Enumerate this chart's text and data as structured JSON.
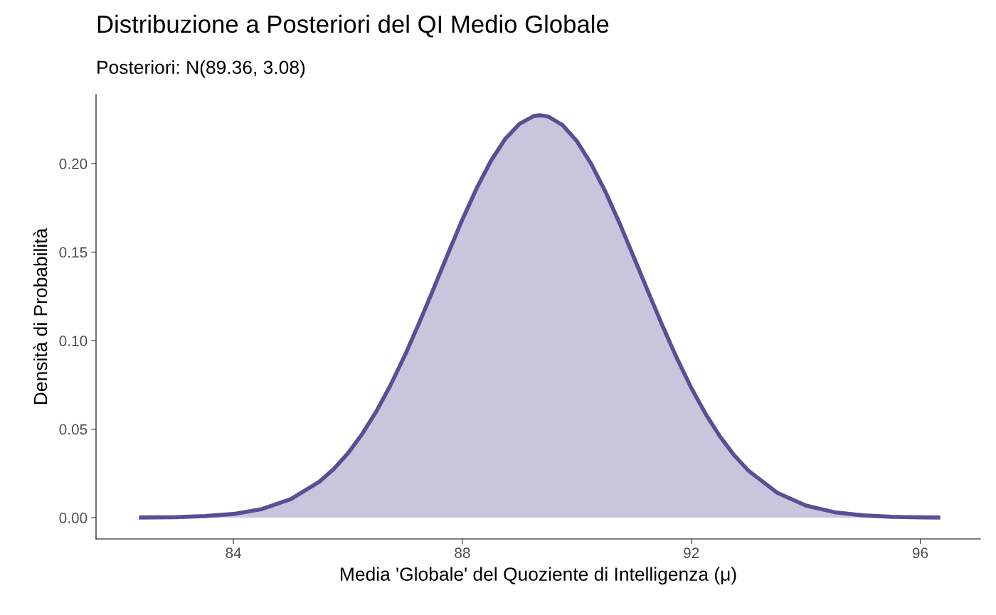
{
  "chart_data": {
    "type": "area",
    "title": "Distribuzione a Posteriori del QI Medio Globale",
    "subtitle": "Posteriori: N(89.36, 3.08)",
    "xlabel": "Media 'Globale' del Quoziente di Intelligenza (μ)",
    "ylabel": "Densità di Probabilità",
    "x": [
      82.35,
      83.0,
      83.5,
      84.0,
      84.5,
      85.0,
      85.5,
      85.75,
      86.0,
      86.25,
      86.5,
      86.75,
      87.0,
      87.25,
      87.5,
      87.75,
      88.0,
      88.25,
      88.5,
      88.75,
      89.0,
      89.25,
      89.36,
      89.5,
      89.75,
      90.0,
      90.25,
      90.5,
      90.75,
      91.0,
      91.25,
      91.5,
      91.75,
      92.0,
      92.25,
      92.5,
      92.75,
      93.0,
      93.5,
      94.0,
      94.5,
      95.0,
      95.5,
      96.0,
      96.35
    ],
    "series": [
      {
        "color": "#5a4e95",
        "values": [
          0.0001,
          0.0003,
          0.0009,
          0.0021,
          0.0049,
          0.0104,
          0.0203,
          0.0274,
          0.0363,
          0.0473,
          0.0602,
          0.0752,
          0.092,
          0.1103,
          0.1296,
          0.1492,
          0.1684,
          0.1861,
          0.2016,
          0.214,
          0.2225,
          0.2269,
          0.2273,
          0.2266,
          0.2218,
          0.2127,
          0.1999,
          0.1841,
          0.1661,
          0.1468,
          0.1273,
          0.1081,
          0.09,
          0.0733,
          0.0586,
          0.0459,
          0.0352,
          0.0265,
          0.0141,
          0.0069,
          0.0031,
          0.0013,
          0.0005,
          0.0002,
          0.0001
        ]
      }
    ],
    "xlim": [
      81.6,
      97.05
    ],
    "ylim": [
      -0.012,
      0.239
    ],
    "xticks": [
      84,
      88,
      92,
      96
    ],
    "yticks": [
      {
        "value": 0,
        "label": "0.00"
      },
      {
        "value": 0.05,
        "label": "0.05"
      },
      {
        "value": 0.1,
        "label": "0.10"
      },
      {
        "value": 0.15,
        "label": "0.15"
      },
      {
        "value": 0.2,
        "label": "0.20"
      }
    ],
    "grid": false,
    "legend": false
  }
}
